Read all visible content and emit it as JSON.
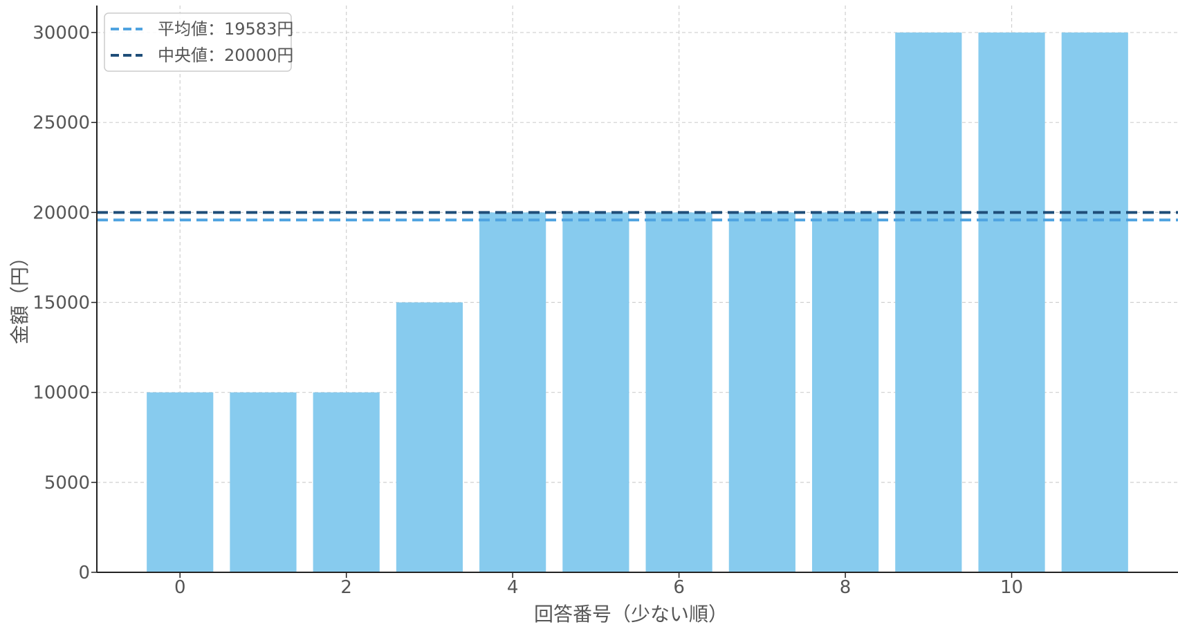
{
  "chart_data": {
    "type": "bar",
    "title": "",
    "xlabel": "回答番号（少ない順）",
    "ylabel": "金額（円）",
    "x": [
      0,
      1,
      2,
      3,
      4,
      5,
      6,
      7,
      8,
      9,
      10,
      11
    ],
    "values": [
      10000,
      10000,
      10000,
      15000,
      20000,
      20000,
      20000,
      20000,
      20000,
      30000,
      30000,
      30000
    ],
    "xlim": [
      -1,
      12
    ],
    "ylim": [
      0,
      31500
    ],
    "xticks": [
      "0",
      "2",
      "4",
      "6",
      "8",
      "10"
    ],
    "yticks": [
      "0",
      "5000",
      "10000",
      "15000",
      "20000",
      "25000",
      "30000"
    ],
    "bar_color": "#87CBEE",
    "grid": true,
    "legend_position": "top-left",
    "reference_lines": [
      {
        "label": "平均値：19583円",
        "value": 19583,
        "color": "#4FA3E0",
        "style": "dashed"
      },
      {
        "label": "中央値：20000円",
        "value": 20000,
        "color": "#1F4E79",
        "style": "dashed"
      }
    ]
  }
}
